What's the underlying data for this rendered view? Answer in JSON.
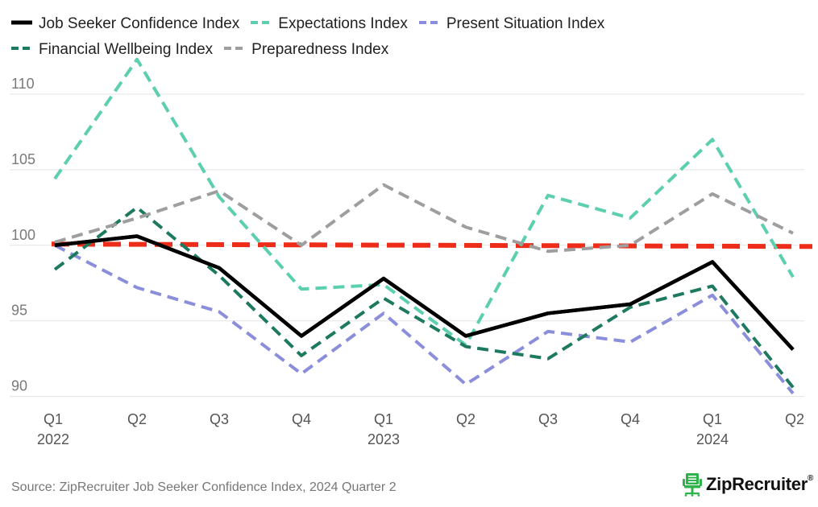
{
  "chart_data": {
    "type": "line",
    "categories": [
      "Q1",
      "Q2",
      "Q3",
      "Q4",
      "Q1",
      "Q2",
      "Q3",
      "Q4",
      "Q1",
      "Q2"
    ],
    "year_labels": [
      "2022",
      "",
      "",
      "",
      "2023",
      "",
      "",
      "",
      "2024",
      ""
    ],
    "ylim": [
      89.5,
      112.5
    ],
    "yticks": [
      90,
      95,
      100,
      105,
      110
    ],
    "grid": true,
    "legend": "top",
    "series": [
      {
        "name": "Job Seeker Confidence Index",
        "color": "#000000",
        "dash": "solid",
        "values": [
          100.0,
          100.6,
          98.5,
          94.0,
          97.8,
          94.0,
          95.5,
          96.1,
          98.9,
          93.1
        ]
      },
      {
        "name": "Expectations Index",
        "color": "#5CCFAE",
        "dash": "dashed",
        "values": [
          104.4,
          112.3,
          103.2,
          97.1,
          97.4,
          93.4,
          103.3,
          101.8,
          107.0,
          97.9
        ]
      },
      {
        "name": "Present Situation Index",
        "color": "#8B8FDB",
        "dash": "dashed",
        "values": [
          100.0,
          97.2,
          95.6,
          91.5,
          95.5,
          90.8,
          94.3,
          93.6,
          96.7,
          90.2
        ]
      },
      {
        "name": "Financial Wellbeing Index",
        "color": "#1E7A5E",
        "dash": "dashed",
        "values": [
          98.4,
          102.5,
          98.0,
          92.7,
          96.5,
          93.3,
          92.5,
          95.9,
          97.3,
          90.6
        ]
      },
      {
        "name": "Preparedness Index",
        "color": "#9E9E9E",
        "dash": "dashed",
        "values": [
          100.2,
          101.8,
          103.6,
          100.0,
          104.0,
          101.2,
          99.6,
          100.0,
          103.4,
          100.8
        ]
      }
    ],
    "reference_line": {
      "value": 100,
      "color": "#EE2C1A"
    }
  },
  "source": "Source: ZipRecruiter Job Seeker Confidence Index, 2024 Quarter 2",
  "logo": {
    "text": "ZipRecruiter",
    "reg": "®",
    "color": "#2DB34A"
  }
}
